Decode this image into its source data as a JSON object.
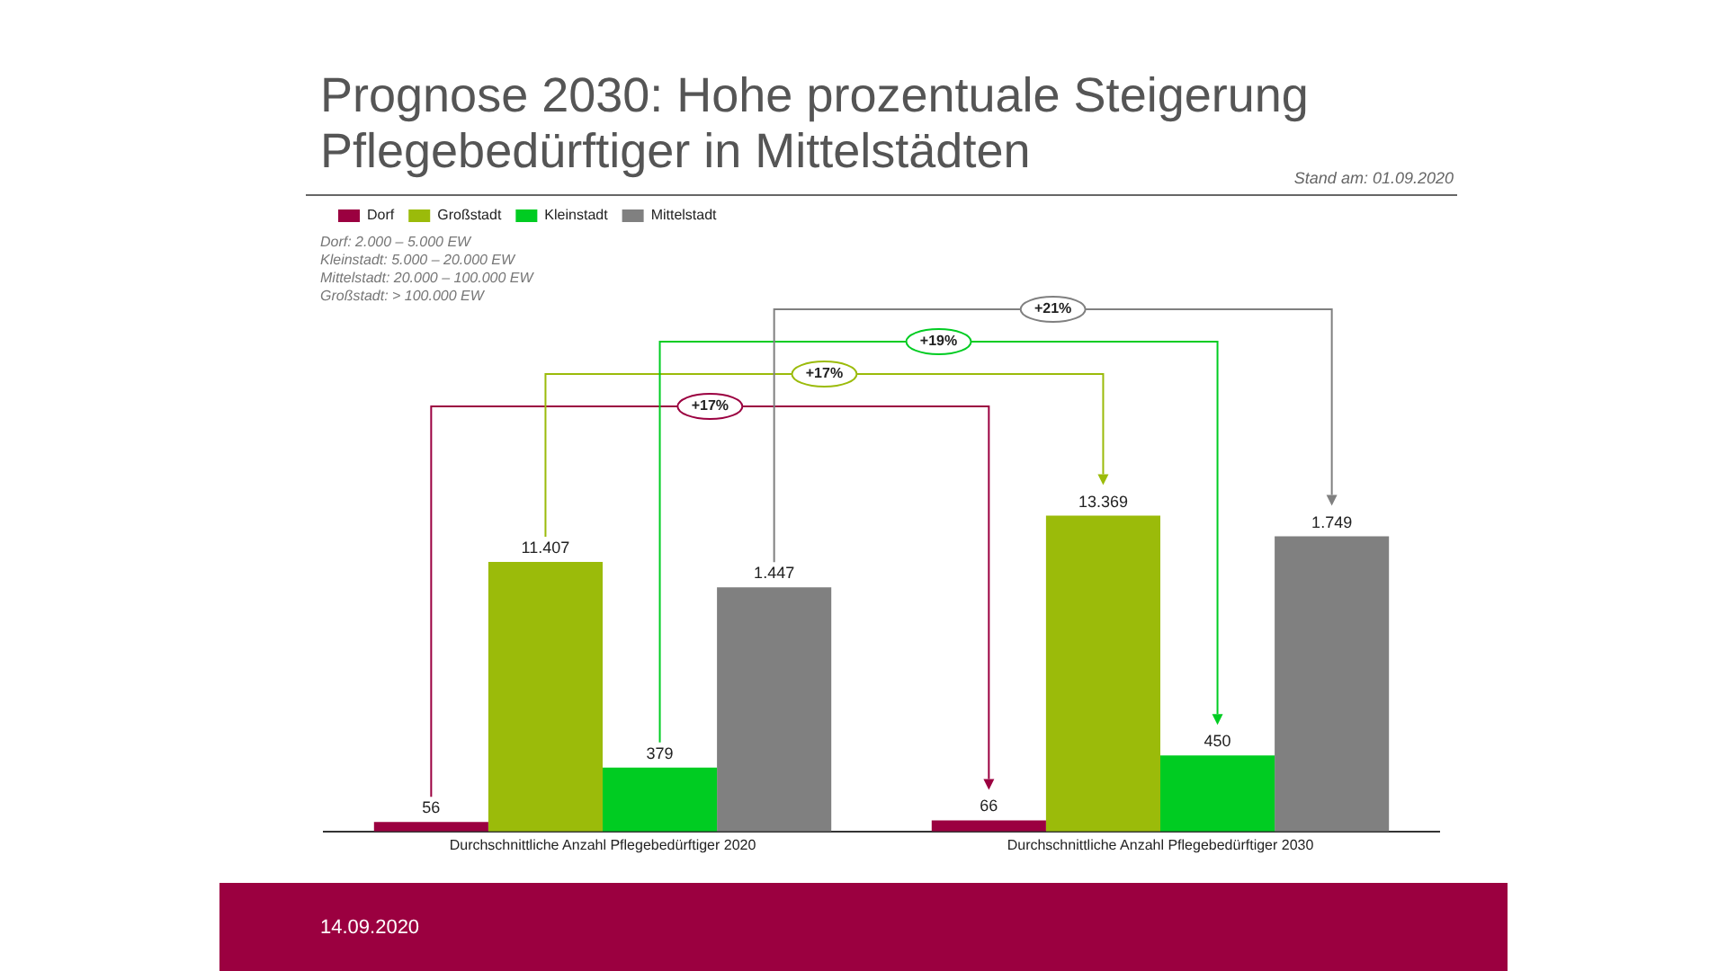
{
  "chart_data": {
    "type": "bar",
    "title": "Prognose 2030: Hohe prozentuale Steigerung Pflegebedürftiger in Mittelstädten",
    "categories": [
      "Durchschnittliche Anzahl Pflegebedürftiger 2020",
      "Durchschnittliche Anzahl Pflegebedürftiger 2030"
    ],
    "series": [
      {
        "name": "Dorf",
        "color": "#9b0040",
        "values": [
          56,
          66
        ],
        "value_labels": [
          "56",
          "66"
        ]
      },
      {
        "name": "Großstadt",
        "color": "#9bbb0a",
        "axis": "y2",
        "values": [
          11407,
          13369
        ],
        "value_labels": [
          "11.407",
          "13.369"
        ]
      },
      {
        "name": "Kleinstadt",
        "color": "#00cc22",
        "values": [
          379,
          450
        ],
        "value_labels": [
          "379",
          "450"
        ]
      },
      {
        "name": "Mittelstadt",
        "color": "#808080",
        "values": [
          1447,
          1749
        ],
        "value_labels": [
          "1.447",
          "1.749"
        ]
      }
    ],
    "legend": "top left",
    "grid": false,
    "annotations": [
      "+17%",
      "+17%",
      "+19%",
      "+21%",
      "Dorf: 2.000 – 5.000 EW",
      "Kleinstadt: 5.000 – 20.000 EW",
      "Mittelstadt: 20.000 – 100.000 EW",
      "Großstadt: > 100.000 EW",
      "Stand am: 01.09.2020",
      "14.09.2020"
    ]
  }
}
